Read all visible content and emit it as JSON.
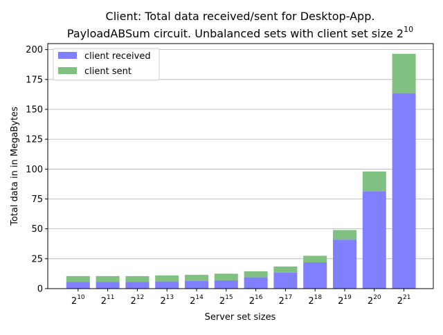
{
  "chart_data": {
    "type": "bar",
    "stacked": true,
    "title_line1": "Client: Total data received/sent for Desktop-App.",
    "title_line2_prefix": "PayloadABSum circuit. Unbalanced sets with client set size 2",
    "title_line2_exp": "10",
    "xlabel": "Server set sizes",
    "ylabel": "Total data in in MegaBytes",
    "ylim": [
      0,
      205
    ],
    "yticks": [
      0,
      25,
      50,
      75,
      100,
      125,
      150,
      175,
      200
    ],
    "grid": "horizontal",
    "legend_position": "top-left",
    "categories": [
      {
        "base": "2",
        "exp": "10"
      },
      {
        "base": "2",
        "exp": "11"
      },
      {
        "base": "2",
        "exp": "12"
      },
      {
        "base": "2",
        "exp": "13"
      },
      {
        "base": "2",
        "exp": "14"
      },
      {
        "base": "2",
        "exp": "15"
      },
      {
        "base": "2",
        "exp": "16"
      },
      {
        "base": "2",
        "exp": "17"
      },
      {
        "base": "2",
        "exp": "18"
      },
      {
        "base": "2",
        "exp": "19"
      },
      {
        "base": "2",
        "exp": "20"
      },
      {
        "base": "2",
        "exp": "21"
      }
    ],
    "series": [
      {
        "name": "client received",
        "color": "#8080ff",
        "values": [
          5.5,
          5.5,
          5.5,
          6.0,
          6.5,
          7.0,
          9.5,
          13.5,
          22.0,
          41.0,
          81.5,
          163.5
        ]
      },
      {
        "name": "client sent",
        "color": "#80c080",
        "values": [
          5.0,
          5.0,
          5.0,
          5.0,
          5.0,
          5.5,
          5.0,
          5.0,
          5.5,
          8.0,
          16.5,
          33.0
        ]
      }
    ]
  }
}
